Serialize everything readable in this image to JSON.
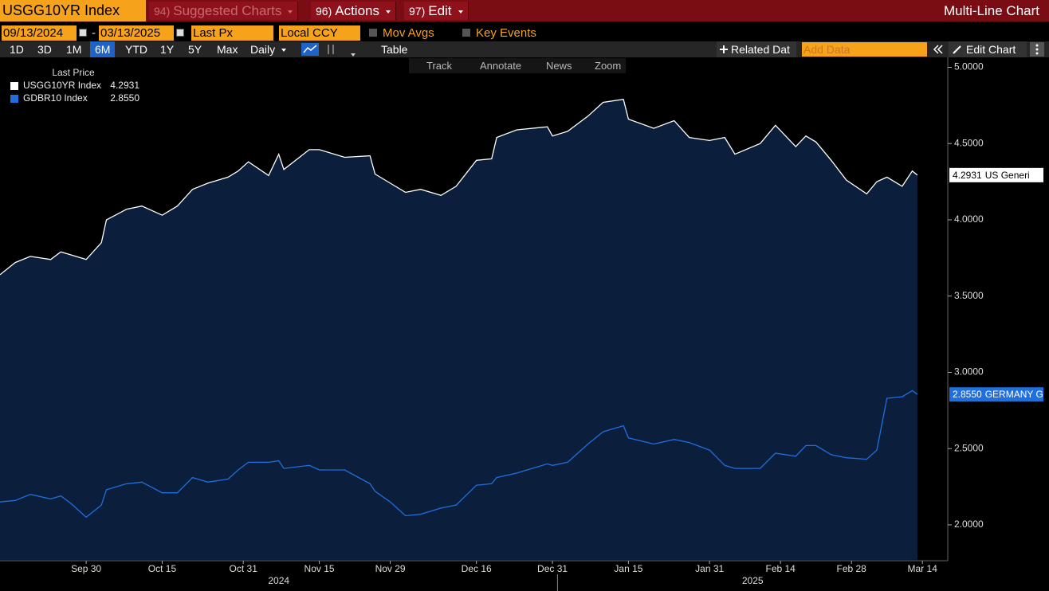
{
  "toolbar": {
    "security": "USGG10YR Index",
    "menus": [
      {
        "key": "94)",
        "label": "Suggested Charts"
      },
      {
        "key": "96)",
        "label": "Actions"
      },
      {
        "key": "97)",
        "label": "Edit"
      }
    ],
    "title": "Multi-Line Chart"
  },
  "settings": {
    "start_date": "09/13/2024",
    "separator": "-",
    "end_date": "03/13/2025",
    "field": "Last Px",
    "currency": "Local CCY",
    "options": [
      "Mov Avgs",
      "Key Events"
    ]
  },
  "controls": {
    "periods": [
      "1D",
      "3D",
      "1M",
      "6M",
      "YTD",
      "1Y",
      "5Y",
      "Max"
    ],
    "active_period": "6M",
    "frequency": "Daily",
    "table": "Table",
    "related": "Related Dat",
    "add_data": "Add Data",
    "edit_chart": "Edit Chart"
  },
  "chart_tools": [
    "Track",
    "Annotate",
    "News",
    "Zoom"
  ],
  "chart_data": {
    "type": "line",
    "legend_title": "Last Price",
    "x": [
      "2024-09-13",
      "2024-09-16",
      "2024-09-19",
      "2024-09-23",
      "2024-09-25",
      "2024-09-27",
      "2024-09-30",
      "2024-10-03",
      "2024-10-04",
      "2024-10-08",
      "2024-10-11",
      "2024-10-15",
      "2024-10-18",
      "2024-10-21",
      "2024-10-24",
      "2024-10-28",
      "2024-10-30",
      "2024-11-01",
      "2024-11-05",
      "2024-11-07",
      "2024-11-08",
      "2024-11-13",
      "2024-11-15",
      "2024-11-20",
      "2024-11-25",
      "2024-11-26",
      "2024-11-29",
      "2024-12-02",
      "2024-12-05",
      "2024-12-09",
      "2024-12-12",
      "2024-12-16",
      "2024-12-19",
      "2024-12-20",
      "2024-12-24",
      "2024-12-30",
      "2024-12-31",
      "2025-01-03",
      "2025-01-07",
      "2025-01-10",
      "2025-01-14",
      "2025-01-15",
      "2025-01-20",
      "2025-01-24",
      "2025-01-27",
      "2025-01-31",
      "2025-02-03",
      "2025-02-05",
      "2025-02-10",
      "2025-02-13",
      "2025-02-17",
      "2025-02-19",
      "2025-02-21",
      "2025-02-24",
      "2025-02-27",
      "2025-03-03",
      "2025-03-05",
      "2025-03-07",
      "2025-03-10",
      "2025-03-12",
      "2025-03-13"
    ],
    "series": [
      {
        "name": "USGG10YR Index",
        "color": "#ffffff",
        "fill": "#0b1e3b",
        "tag": "US Generi",
        "values": [
          3.64,
          3.72,
          3.76,
          3.74,
          3.79,
          3.77,
          3.74,
          3.85,
          4.0,
          4.07,
          4.09,
          4.03,
          4.09,
          4.2,
          4.24,
          4.28,
          4.32,
          4.38,
          4.29,
          4.43,
          4.33,
          4.46,
          4.46,
          4.41,
          4.42,
          4.3,
          4.24,
          4.18,
          4.2,
          4.16,
          4.22,
          4.39,
          4.4,
          4.54,
          4.59,
          4.61,
          4.55,
          4.58,
          4.68,
          4.77,
          4.79,
          4.66,
          4.6,
          4.65,
          4.54,
          4.52,
          4.54,
          4.43,
          4.5,
          4.62,
          4.48,
          4.55,
          4.51,
          4.39,
          4.26,
          4.17,
          4.25,
          4.28,
          4.22,
          4.32,
          4.2931
        ]
      },
      {
        "name": "GDBR10 Index",
        "color": "#1f6fe0",
        "tag": "GERMANY G",
        "values": [
          2.15,
          2.16,
          2.2,
          2.17,
          2.19,
          2.14,
          2.05,
          2.13,
          2.23,
          2.27,
          2.28,
          2.21,
          2.21,
          2.31,
          2.28,
          2.3,
          2.36,
          2.41,
          2.41,
          2.42,
          2.37,
          2.39,
          2.36,
          2.36,
          2.27,
          2.22,
          2.15,
          2.06,
          2.07,
          2.11,
          2.13,
          2.26,
          2.27,
          2.31,
          2.34,
          2.4,
          2.39,
          2.41,
          2.53,
          2.61,
          2.65,
          2.57,
          2.53,
          2.56,
          2.54,
          2.49,
          2.39,
          2.37,
          2.37,
          2.47,
          2.45,
          2.52,
          2.52,
          2.46,
          2.44,
          2.43,
          2.49,
          2.83,
          2.84,
          2.88,
          2.855
        ],
        "value_labels": [
          null,
          null,
          null,
          null,
          null,
          null,
          null,
          null,
          null,
          null,
          null,
          null,
          null,
          null,
          null,
          null,
          null,
          null,
          null,
          null,
          null,
          null,
          null,
          null,
          null,
          null,
          null,
          null,
          null,
          null,
          null,
          null,
          null,
          null,
          null,
          null,
          null,
          null,
          null,
          null,
          null,
          null,
          null,
          null,
          null,
          null,
          null,
          null,
          null,
          null,
          null,
          null,
          null,
          null,
          null,
          null,
          null,
          null,
          null,
          null,
          "2.8550"
        ]
      }
    ],
    "xlim": [
      "2024-09-13",
      "2025-03-19"
    ],
    "xticks": [
      {
        "value": "2024-09-30",
        "label": "Sep 30"
      },
      {
        "value": "2024-10-15",
        "label": "Oct 15"
      },
      {
        "value": "2024-10-31",
        "label": "Oct 31"
      },
      {
        "value": "2024-11-15",
        "label": "Nov 15"
      },
      {
        "value": "2024-11-29",
        "label": "Nov 29"
      },
      {
        "value": "2024-12-16",
        "label": "Dec 16"
      },
      {
        "value": "2024-12-31",
        "label": "Dec 31"
      },
      {
        "value": "2025-01-15",
        "label": "Jan 15"
      },
      {
        "value": "2025-01-31",
        "label": "Jan 31"
      },
      {
        "value": "2025-02-14",
        "label": "Feb 14"
      },
      {
        "value": "2025-02-28",
        "label": "Feb 28"
      },
      {
        "value": "2025-03-14",
        "label": "Mar 14"
      }
    ],
    "years": [
      "2024",
      "2025"
    ],
    "ylim": [
      1.77,
      5.06
    ],
    "yticks": [
      {
        "value": 2,
        "label": "2.0000"
      },
      {
        "value": 2.5,
        "label": "2.5000"
      },
      {
        "value": 3,
        "label": "3.0000"
      },
      {
        "value": 3.5,
        "label": "3.5000"
      },
      {
        "value": 4,
        "label": "4.0000"
      },
      {
        "value": 4.5,
        "label": "4.5000"
      },
      {
        "value": 5,
        "label": "5.0000"
      }
    ]
  }
}
